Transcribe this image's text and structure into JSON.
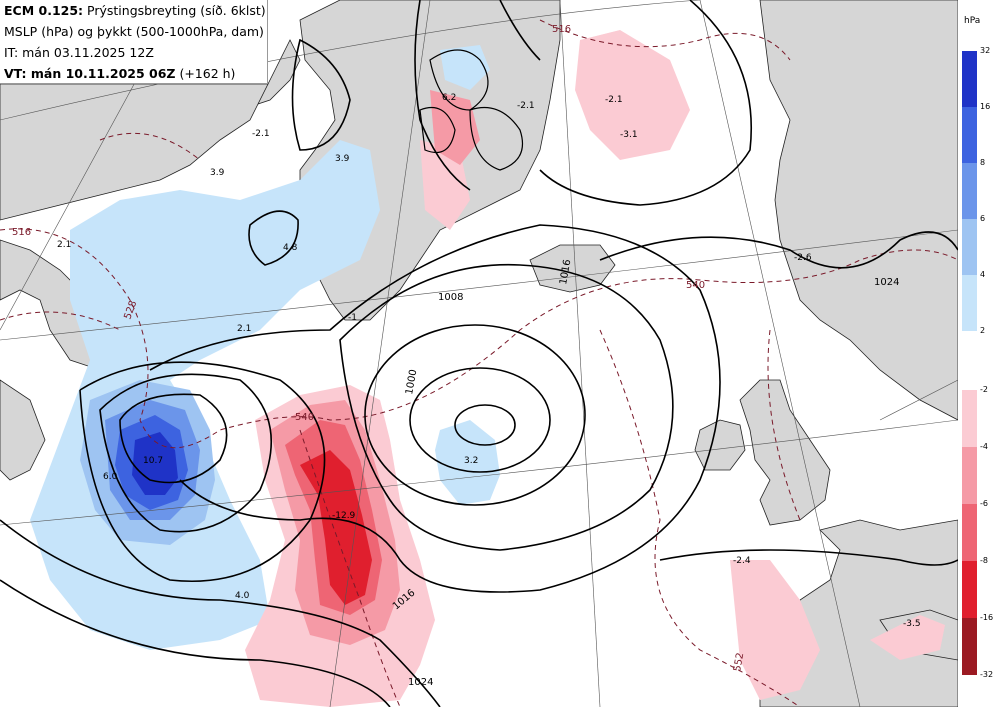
{
  "header": {
    "line1_bold": "ECM 0.125:",
    "line1_rest": "Prýstingsbreyting (síð. 6klst)",
    "line2": "MSLP (hPa) og þykkt (500-1000hPa, dam)",
    "line3": "IT: mán 03.11.2025 12Z",
    "line4_bold": "VT: mán 10.11.2025 06Z",
    "line4_rest": "(+162 h)"
  },
  "legend": {
    "unit": "hPa",
    "rise": {
      "ticks": [
        "32",
        "16",
        "8",
        "6",
        "4",
        "2"
      ],
      "colors": [
        "#1f33c7",
        "#3d63e0",
        "#6b95ea",
        "#9ec4f2",
        "#c6e4fa"
      ]
    },
    "fall": {
      "ticks": [
        "-2",
        "-4",
        "-6",
        "-8",
        "-16",
        "-32"
      ],
      "colors": [
        "#fbcbd3",
        "#f59aa6",
        "#ee6574",
        "#e01f2e",
        "#9b1a22"
      ]
    }
  },
  "map_labels": {
    "isobars": [
      "1008",
      "1000",
      "1016",
      "1024",
      "1024",
      "1016"
    ],
    "thickness": [
      "540",
      "540",
      "528",
      "516",
      "552",
      "516"
    ],
    "tendency": [
      "-2.1",
      "-3.1",
      "-2.1",
      "3.9",
      "3.9",
      "2.1",
      "4.8",
      "2.1",
      "-2.6",
      "10.7",
      "6.0",
      "4.0",
      "-12.9",
      "3.2",
      "-2.4",
      "-3.5",
      "-1",
      "6.2",
      "-2.1"
    ]
  },
  "colors": {
    "land": "#d6d6d6",
    "sea": "#ffffff",
    "isobar": "#000000",
    "thickness": "#7a1a2a"
  }
}
